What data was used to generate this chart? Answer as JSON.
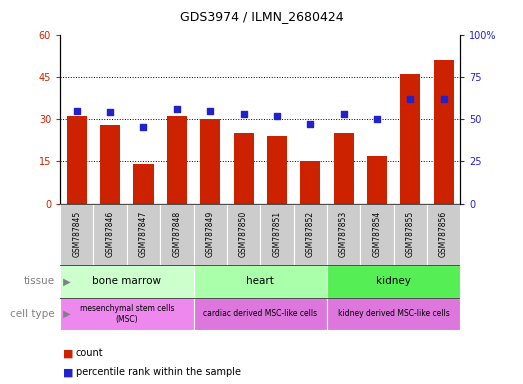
{
  "title": "GDS3974 / ILMN_2680424",
  "samples": [
    "GSM787845",
    "GSM787846",
    "GSM787847",
    "GSM787848",
    "GSM787849",
    "GSM787850",
    "GSM787851",
    "GSM787852",
    "GSM787853",
    "GSM787854",
    "GSM787855",
    "GSM787856"
  ],
  "counts": [
    31,
    28,
    14,
    31,
    30,
    25,
    24,
    15,
    25,
    17,
    46,
    51
  ],
  "percentiles": [
    55,
    54,
    45,
    56,
    55,
    53,
    52,
    47,
    53,
    50,
    62,
    62
  ],
  "ylim_left": [
    0,
    60
  ],
  "ylim_right": [
    0,
    100
  ],
  "yticks_left": [
    0,
    15,
    30,
    45,
    60
  ],
  "yticks_right": [
    0,
    25,
    50,
    75,
    100
  ],
  "yticklabels_right": [
    "0",
    "25",
    "50",
    "75",
    "100%"
  ],
  "bar_color": "#cc2200",
  "dot_color": "#2222cc",
  "tissue_groups": [
    {
      "label": "bone marrow",
      "start": 0,
      "end": 3,
      "color": "#ccffcc"
    },
    {
      "label": "heart",
      "start": 4,
      "end": 7,
      "color": "#aaffaa"
    },
    {
      "label": "kidney",
      "start": 8,
      "end": 11,
      "color": "#55ee55"
    }
  ],
  "celltype_groups": [
    {
      "label": "mesenchymal stem cells\n(MSC)",
      "start": 0,
      "end": 3,
      "color": "#ee88ee"
    },
    {
      "label": "cardiac derived MSC-like cells",
      "start": 4,
      "end": 7,
      "color": "#dd77dd"
    },
    {
      "label": "kidney derived MSC-like cells",
      "start": 8,
      "end": 11,
      "color": "#dd77dd"
    }
  ],
  "sample_bg_color": "#cccccc",
  "legend_count_label": "count",
  "legend_pct_label": "percentile rank within the sample"
}
